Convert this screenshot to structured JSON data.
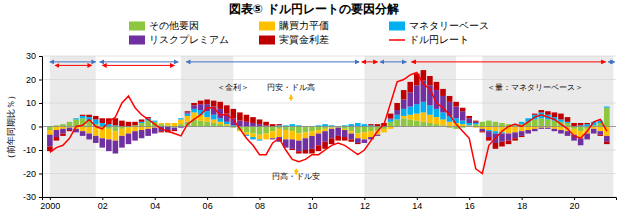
{
  "chart_data": {
    "type": "bar",
    "stacked": true,
    "grid": true,
    "legend": "top",
    "title": "図表⑤ ドル円レートの要因分解",
    "ylabel": "（前年同期比％）",
    "xlim": [
      1999.7,
      2021.6
    ],
    "xticks": [
      2000,
      {
        "value": 2002,
        "label": "02"
      },
      {
        "value": 2004,
        "label": "04"
      },
      {
        "value": 2006,
        "label": "06"
      },
      {
        "value": 2008,
        "label": "08"
      },
      {
        "value": 2010,
        "label": "10"
      },
      {
        "value": 2012,
        "label": "12"
      },
      {
        "value": 2014,
        "label": "14"
      },
      {
        "value": 2016,
        "label": "16"
      },
      {
        "value": 2018,
        "label": "18"
      },
      {
        "value": 2020,
        "label": "20"
      }
    ],
    "ylim": [
      -30,
      30
    ],
    "yticks": [
      -30,
      -20,
      -10,
      0,
      10,
      20,
      30
    ],
    "shaded_regions": [
      [
        2000.0,
        2001.75
      ],
      [
        2005.0,
        2007.0
      ],
      [
        2012.0,
        2015.5
      ],
      [
        2016.5,
        2021.5
      ]
    ],
    "x": [
      2000.0,
      2000.25,
      2000.5,
      2000.75,
      2001.0,
      2001.25,
      2001.5,
      2001.75,
      2002.0,
      2002.25,
      2002.5,
      2002.75,
      2003.0,
      2003.25,
      2003.5,
      2003.75,
      2004.0,
      2004.25,
      2004.5,
      2004.75,
      2005.0,
      2005.25,
      2005.5,
      2005.75,
      2006.0,
      2006.25,
      2006.5,
      2006.75,
      2007.0,
      2007.25,
      2007.5,
      2007.75,
      2008.0,
      2008.25,
      2008.5,
      2008.75,
      2009.0,
      2009.25,
      2009.5,
      2009.75,
      2010.0,
      2010.25,
      2010.5,
      2010.75,
      2011.0,
      2011.25,
      2011.5,
      2011.75,
      2012.0,
      2012.25,
      2012.5,
      2012.75,
      2013.0,
      2013.25,
      2013.5,
      2013.75,
      2014.0,
      2014.25,
      2014.5,
      2014.75,
      2015.0,
      2015.25,
      2015.5,
      2015.75,
      2016.0,
      2016.25,
      2016.5,
      2016.75,
      2017.0,
      2017.25,
      2017.5,
      2017.75,
      2018.0,
      2018.25,
      2018.5,
      2018.75,
      2019.0,
      2019.25,
      2019.5,
      2019.75,
      2020.0,
      2020.25,
      2020.5,
      2020.75,
      2021.0,
      2021.25
    ],
    "series": [
      {
        "name": "その他要因",
        "type": "bar",
        "color": "#8dc63f",
        "values": [
          -1.5,
          0.5,
          1.0,
          2.0,
          3.0,
          3.5,
          2.5,
          1.0,
          0.0,
          -1.0,
          -2.0,
          -1.0,
          -0.5,
          0.5,
          1.5,
          2.5,
          2.0,
          1.0,
          0.5,
          -0.5,
          1.0,
          2.0,
          3.0,
          2.5,
          2.0,
          1.5,
          1.0,
          0.5,
          -0.5,
          -1.5,
          -2.5,
          -3.0,
          -3.5,
          -3.0,
          -2.0,
          -1.0,
          -1.5,
          -2.0,
          -3.0,
          -2.5,
          -2.0,
          -1.5,
          -1.0,
          -0.5,
          -0.5,
          -1.0,
          -2.0,
          -3.0,
          -2.5,
          -2.0,
          -1.5,
          -1.0,
          2.0,
          3.0,
          3.5,
          3.0,
          2.5,
          2.0,
          1.5,
          1.0,
          0.5,
          -0.5,
          -1.0,
          -0.5,
          0.0,
          1.0,
          2.0,
          2.5,
          2.0,
          1.5,
          1.0,
          0.5,
          1.0,
          2.0,
          3.0,
          3.5,
          3.0,
          2.5,
          2.0,
          1.5,
          -1.0,
          -2.0,
          -1.0,
          0.5,
          1.5,
          8.0
        ]
      },
      {
        "name": "購買力平価",
        "type": "bar",
        "color": "#ffc000",
        "values": [
          -2.0,
          -1.5,
          -1.0,
          -0.5,
          -1.0,
          -2.0,
          -3.0,
          -4.0,
          -5.0,
          -4.5,
          -4.0,
          -3.0,
          -2.5,
          -2.0,
          -1.5,
          -1.0,
          -0.5,
          0.5,
          1.0,
          1.5,
          2.0,
          2.5,
          3.0,
          2.5,
          2.0,
          1.5,
          1.0,
          0.5,
          0.0,
          -0.5,
          -1.0,
          -1.5,
          -2.0,
          -2.5,
          -3.0,
          -3.5,
          -4.0,
          -3.5,
          -3.0,
          -2.5,
          -2.0,
          -1.5,
          -1.0,
          -0.5,
          0.0,
          -0.5,
          -1.0,
          -2.0,
          -3.0,
          -2.5,
          -2.0,
          -1.5,
          -1.0,
          0.0,
          1.0,
          2.0,
          3.0,
          4.0,
          3.5,
          3.0,
          2.5,
          2.0,
          1.5,
          1.0,
          0.5,
          -0.5,
          -1.0,
          -1.5,
          -2.0,
          -2.5,
          -3.0,
          -2.5,
          -2.0,
          -1.5,
          -1.0,
          -0.5,
          -0.5,
          -1.0,
          -1.5,
          -2.0,
          -2.5,
          -3.0,
          -2.0,
          -1.0,
          -2.0,
          -4.0
        ]
      },
      {
        "name": "マネタリーベース",
        "type": "bar",
        "color": "#00b0f0",
        "values": [
          0.0,
          0.0,
          0.0,
          0.0,
          0.5,
          1.0,
          1.5,
          2.0,
          1.5,
          1.0,
          0.5,
          0.0,
          0.0,
          0.0,
          0.5,
          1.0,
          0.5,
          0.0,
          0.0,
          0.0,
          0.5,
          1.0,
          1.5,
          2.0,
          2.5,
          2.0,
          1.5,
          1.0,
          0.5,
          0.0,
          -0.5,
          -1.0,
          -0.5,
          0.0,
          0.0,
          0.5,
          0.5,
          1.0,
          0.5,
          0.0,
          0.0,
          0.5,
          1.0,
          0.5,
          0.0,
          0.5,
          1.0,
          1.5,
          1.0,
          0.5,
          0.0,
          0.0,
          1.0,
          2.0,
          3.0,
          3.5,
          4.0,
          4.5,
          4.0,
          3.5,
          3.0,
          2.5,
          2.0,
          1.5,
          1.0,
          0.5,
          0.0,
          -0.5,
          -1.0,
          -0.5,
          0.0,
          0.5,
          1.0,
          1.5,
          2.0,
          2.5,
          2.0,
          1.5,
          1.0,
          0.5,
          0.0,
          0.5,
          1.0,
          1.5,
          1.0,
          0.5
        ]
      },
      {
        "name": "リスクプレミアム",
        "type": "bar",
        "color": "#7030a0",
        "values": [
          -5.0,
          -3.0,
          -2.0,
          -1.0,
          -1.5,
          -2.0,
          -2.5,
          -3.0,
          -4.0,
          -5.0,
          -5.5,
          -5.0,
          -4.5,
          -4.0,
          -3.5,
          -3.0,
          -2.5,
          -2.0,
          -1.5,
          -1.0,
          -0.5,
          0.5,
          1.5,
          2.5,
          3.0,
          3.5,
          4.0,
          3.5,
          3.0,
          2.5,
          2.0,
          1.5,
          1.0,
          0.5,
          -0.5,
          -2.0,
          -3.5,
          -4.0,
          -4.5,
          -5.0,
          -5.5,
          -5.0,
          -4.5,
          -4.0,
          -3.5,
          -3.0,
          -2.5,
          -2.0,
          -1.5,
          -1.0,
          -0.5,
          0.0,
          0.5,
          2.0,
          4.0,
          6.0,
          8.0,
          9.0,
          8.5,
          8.0,
          7.0,
          6.0,
          5.0,
          4.0,
          2.0,
          0.5,
          -1.0,
          -2.5,
          -4.0,
          -3.5,
          -3.0,
          -2.5,
          -2.0,
          -1.5,
          -1.0,
          -0.5,
          -0.5,
          -1.0,
          -1.5,
          -2.0,
          -2.5,
          -3.0,
          -2.5,
          -2.0,
          -1.5,
          -2.5
        ]
      },
      {
        "name": "実質金利差",
        "type": "bar",
        "color": "#c00000",
        "values": [
          -2.0,
          -1.5,
          -1.0,
          -0.5,
          0.0,
          0.5,
          1.0,
          1.5,
          2.0,
          2.5,
          3.0,
          2.5,
          2.0,
          1.5,
          1.0,
          0.5,
          0.0,
          -0.5,
          -1.0,
          -0.5,
          0.0,
          0.5,
          1.0,
          1.5,
          2.0,
          2.5,
          3.0,
          3.5,
          4.0,
          3.5,
          3.0,
          2.5,
          2.0,
          1.5,
          1.0,
          0.5,
          0.0,
          -0.5,
          -1.0,
          -1.5,
          -2.0,
          -2.5,
          -3.0,
          -2.5,
          -2.0,
          -1.5,
          -1.0,
          -0.5,
          0.0,
          0.5,
          1.0,
          1.5,
          2.0,
          3.0,
          4.0,
          4.5,
          5.0,
          4.5,
          4.0,
          3.5,
          3.0,
          2.5,
          2.0,
          1.5,
          1.0,
          0.5,
          -0.5,
          -1.5,
          -2.5,
          -2.0,
          -1.5,
          -1.0,
          -0.5,
          0.0,
          0.5,
          1.0,
          1.5,
          2.0,
          2.5,
          2.0,
          1.5,
          1.0,
          0.5,
          0.0,
          -0.5,
          -1.0
        ]
      },
      {
        "name": "ドル円レート",
        "type": "line",
        "color": "#ff0000",
        "values": [
          -11.0,
          -9.0,
          -8.0,
          -5.0,
          0.0,
          0.5,
          3.0,
          0.0,
          -1.0,
          2.0,
          4.0,
          10.0,
          13.0,
          8.0,
          5.0,
          3.0,
          1.0,
          -1.0,
          -2.0,
          -3.0,
          -4.0,
          1.0,
          3.0,
          5.0,
          8.0,
          8.0,
          5.0,
          5.0,
          3.0,
          -1.0,
          -5.0,
          -8.0,
          -12.0,
          -12.0,
          -7.0,
          -5.0,
          -10.0,
          -14.0,
          -15.0,
          -14.0,
          -12.0,
          -12.0,
          -10.0,
          -8.0,
          -7.0,
          -8.0,
          -10.0,
          -12.0,
          -10.0,
          -6.0,
          -2.0,
          1.0,
          10.0,
          19.0,
          20.0,
          22.0,
          23.0,
          18.0,
          16.0,
          10.0,
          8.0,
          5.0,
          1.0,
          -2.0,
          -5.0,
          -18.0,
          -20.0,
          -8.0,
          -5.0,
          -2.0,
          0.0,
          1.0,
          0.0,
          2.0,
          4.0,
          5.0,
          4.0,
          3.0,
          1.0,
          -1.0,
          -4.0,
          -5.0,
          -2.0,
          2.0,
          3.0,
          -2.0
        ]
      }
    ],
    "period_arrows": [
      {
        "x": [
          2000.0,
          2001.75
        ],
        "y": 27.5,
        "color": "#4472c4"
      },
      {
        "x": [
          2000.2,
          2001.6
        ],
        "y": 26.0,
        "color": "red"
      },
      {
        "x": [
          2001.9,
          2004.9
        ],
        "y": 27.5,
        "color": "#4472c4"
      },
      {
        "x": [
          2002.0,
          2004.75
        ],
        "y": 26.0,
        "color": "red"
      },
      {
        "x": [
          2005.2,
          2011.8
        ],
        "y": 27.5,
        "color": "#4472c4"
      },
      {
        "x": [
          2011.9,
          2012.5
        ],
        "y": 27.5,
        "color": "red"
      },
      {
        "x": [
          2012.6,
          2013.6
        ],
        "y": 27.5,
        "color": "#4472c4"
      },
      {
        "x": [
          2013.8,
          2021.2
        ],
        "y": 27.5,
        "color": "red"
      },
      {
        "x": [
          2021.3,
          2021.55
        ],
        "y": 27.5,
        "color": "#4472c4"
      }
    ],
    "direction_arrows": [
      {
        "x": 2009.2,
        "y": [
          11.0,
          13.5
        ],
        "color": "#ffc000"
      },
      {
        "x": 2009.4,
        "y": [
          -18.0,
          -20.5
        ],
        "color": "#ffc000"
      }
    ],
    "annotations": [
      {
        "text": "＜金利＞",
        "x": 2007.0,
        "y": 15.5
      },
      {
        "text": "円安・ドル高",
        "x": 2009.2,
        "y": 15.5
      },
      {
        "text": "円高・ドル安",
        "x": 2009.4,
        "y": -22.5
      },
      {
        "text": "＜量：マネタリーベース＞",
        "x": 2018.5,
        "y": 15.5
      }
    ]
  }
}
